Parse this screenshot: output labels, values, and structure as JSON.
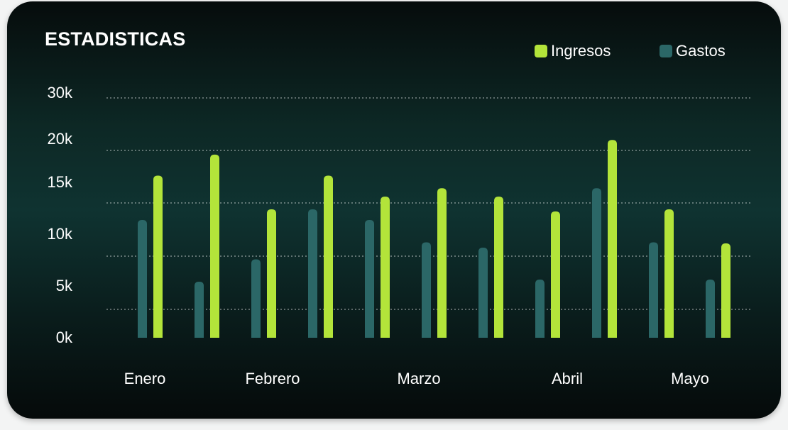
{
  "chart_data": {
    "type": "bar",
    "title": "ESTADISTICAS",
    "y_tick_labels": [
      "30k",
      "20k",
      "15k",
      "10k",
      "5k",
      "0k"
    ],
    "y_ticks": [
      30,
      20,
      15,
      10,
      5,
      0
    ],
    "x_labels": [
      "Enero",
      "Febrero",
      "Marzo",
      "Abril",
      "Mayo"
    ],
    "grid": "dotted horizontal",
    "legend_position": "top-right",
    "series": [
      {
        "name": "Ingresos",
        "color": "#b3e43a",
        "values": [
          17.6,
          19.6,
          14.4,
          17.6,
          15.6,
          16.4,
          15.6,
          14.2,
          22,
          14.4,
          11.2
        ]
      },
      {
        "name": "Gastos",
        "color": "#2b6767",
        "values": [
          13.4,
          7.6,
          9.7,
          14.4,
          13.4,
          11.3,
          10.8,
          7.8,
          16.4,
          11.3,
          7.8
        ]
      }
    ]
  }
}
